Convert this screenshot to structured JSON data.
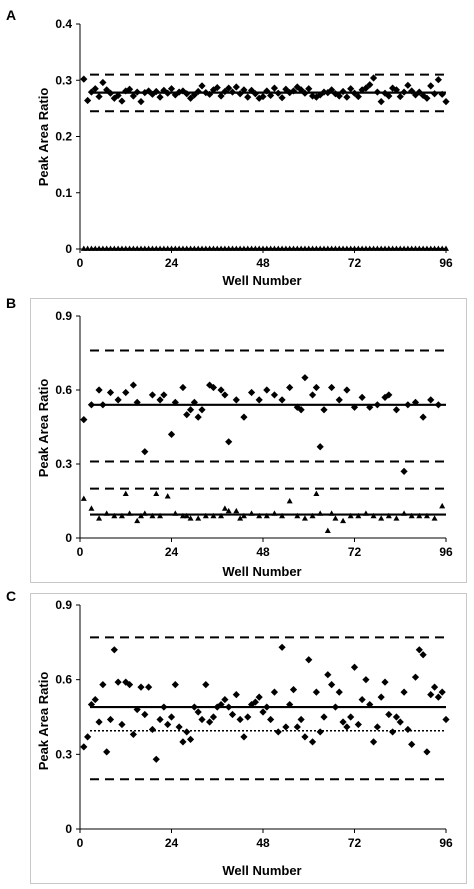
{
  "chart_data": [
    {
      "type": "scatter",
      "panel_label": "A",
      "xlabel": "Well Number",
      "ylabel": "Peak Area Ratio",
      "xlim": [
        0,
        96
      ],
      "ylim": [
        0,
        0.4
      ],
      "xticks": [
        0,
        24,
        48,
        72,
        96
      ],
      "yticks": [
        0,
        0.1,
        0.2,
        0.3,
        0.4
      ],
      "xtick_labels": [
        "0",
        "24",
        "48",
        "72",
        "96"
      ],
      "ytick_labels": [
        "0",
        "0.1",
        "0.2",
        "0.3",
        "0.4"
      ],
      "frame": false,
      "series": [
        {
          "marker": "diamond",
          "x": [
            1,
            2,
            3,
            4,
            5,
            6,
            7,
            8,
            9,
            10,
            11,
            12,
            13,
            14,
            15,
            16,
            17,
            18,
            19,
            20,
            21,
            22,
            23,
            24,
            25,
            26,
            27,
            28,
            29,
            30,
            31,
            32,
            33,
            34,
            35,
            36,
            37,
            38,
            39,
            40,
            41,
            42,
            43,
            44,
            45,
            46,
            47,
            48,
            49,
            50,
            51,
            52,
            53,
            54,
            55,
            56,
            57,
            58,
            59,
            60,
            61,
            62,
            63,
            64,
            65,
            66,
            67,
            68,
            69,
            70,
            71,
            72,
            73,
            74,
            75,
            76,
            77,
            78,
            79,
            80,
            81,
            82,
            83,
            84,
            85,
            86,
            87,
            88,
            89,
            90,
            91,
            92,
            93,
            94,
            95,
            96
          ],
          "y": [
            0.302,
            0.264,
            0.279,
            0.285,
            0.271,
            0.296,
            0.283,
            0.277,
            0.268,
            0.273,
            0.263,
            0.281,
            0.284,
            0.272,
            0.279,
            0.262,
            0.278,
            0.281,
            0.275,
            0.28,
            0.27,
            0.282,
            0.277,
            0.285,
            0.274,
            0.279,
            0.281,
            0.276,
            0.268,
            0.274,
            0.28,
            0.29,
            0.278,
            0.275,
            0.283,
            0.287,
            0.272,
            0.28,
            0.286,
            0.279,
            0.288,
            0.276,
            0.283,
            0.27,
            0.282,
            0.276,
            0.268,
            0.271,
            0.281,
            0.273,
            0.286,
            0.277,
            0.269,
            0.284,
            0.278,
            0.281,
            0.288,
            0.283,
            0.277,
            0.285,
            0.272,
            0.27,
            0.274,
            0.279,
            0.278,
            0.283,
            0.276,
            0.272,
            0.28,
            0.27,
            0.285,
            0.277,
            0.271,
            0.283,
            0.286,
            0.292,
            0.304,
            0.279,
            0.262,
            0.277,
            0.272,
            0.286,
            0.283,
            0.271,
            0.279,
            0.291,
            0.281,
            0.274,
            0.279,
            0.273,
            0.268,
            0.29,
            0.276,
            0.301,
            0.275,
            0.262
          ]
        },
        {
          "marker": "triangle",
          "x": [
            1,
            2,
            3,
            4,
            5,
            6,
            7,
            8,
            9,
            10,
            11,
            12,
            13,
            14,
            15,
            16,
            17,
            18,
            19,
            20,
            21,
            22,
            23,
            24,
            25,
            26,
            27,
            28,
            29,
            30,
            31,
            32,
            33,
            34,
            35,
            36,
            37,
            38,
            39,
            40,
            41,
            42,
            43,
            44,
            45,
            46,
            47,
            48,
            49,
            50,
            51,
            52,
            53,
            54,
            55,
            56,
            57,
            58,
            59,
            60,
            61,
            62,
            63,
            64,
            65,
            66,
            67,
            68,
            69,
            70,
            71,
            72,
            73,
            74,
            75,
            76,
            77,
            78,
            79,
            80,
            81,
            82,
            83,
            84,
            85,
            86,
            87,
            88,
            89,
            90,
            91,
            92,
            93,
            94,
            95,
            96
          ],
          "y": [
            0.001,
            0.001,
            0.001,
            0.001,
            0.001,
            0.001,
            0.001,
            0.001,
            0.001,
            0.001,
            0.001,
            0.001,
            0.001,
            0.001,
            0.001,
            0.001,
            0.001,
            0.001,
            0.001,
            0.001,
            0.001,
            0.001,
            0.001,
            0.001,
            0.001,
            0.001,
            0.001,
            0.001,
            0.001,
            0.001,
            0.001,
            0.001,
            0.001,
            0.001,
            0.001,
            0.001,
            0.001,
            0.001,
            0.001,
            0.001,
            0.001,
            0.001,
            0.001,
            0.001,
            0.001,
            0.001,
            0.001,
            0.001,
            0.001,
            0.001,
            0.001,
            0.001,
            0.001,
            0.001,
            0.001,
            0.001,
            0.001,
            0.001,
            0.001,
            0.001,
            0.001,
            0.001,
            0.001,
            0.001,
            0.001,
            0.001,
            0.001,
            0.001,
            0.001,
            0.001,
            0.001,
            0.001,
            0.001,
            0.001,
            0.001,
            0.001,
            0.001,
            0.001,
            0.001,
            0.001,
            0.001,
            0.001,
            0.001,
            0.001,
            0.001,
            0.001,
            0.001,
            0.001,
            0.001,
            0.001,
            0.001,
            0.001,
            0.001,
            0.001,
            0.001,
            0.001
          ]
        }
      ],
      "reference_lines": [
        {
          "y": 0.278,
          "style": "solid"
        },
        {
          "y": 0.31,
          "style": "dashed"
        },
        {
          "y": 0.245,
          "style": "dashed"
        },
        {
          "y": 0,
          "style": "solid"
        }
      ]
    },
    {
      "type": "scatter",
      "panel_label": "B",
      "xlabel": "Well Number",
      "ylabel": "Peak Area Ratio",
      "xlim": [
        0,
        96
      ],
      "ylim": [
        0,
        0.9
      ],
      "xticks": [
        0,
        24,
        48,
        72,
        96
      ],
      "yticks": [
        0,
        0.3,
        0.6,
        0.9
      ],
      "xtick_labels": [
        "0",
        "24",
        "48",
        "72",
        "96"
      ],
      "ytick_labels": [
        "0",
        "0.3",
        "0.6",
        "0.9"
      ],
      "frame": true,
      "series": [
        {
          "marker": "diamond",
          "x": [
            1,
            3,
            5,
            6,
            8,
            10,
            12,
            14,
            15,
            17,
            19,
            21,
            22,
            24,
            25,
            27,
            28,
            29,
            30,
            31,
            32,
            34,
            35,
            37,
            38,
            39,
            41,
            43,
            45,
            47,
            49,
            51,
            53,
            55,
            57,
            58,
            59,
            61,
            62,
            63,
            64,
            66,
            68,
            70,
            72,
            74,
            76,
            78,
            80,
            81,
            83,
            85,
            86,
            88,
            90,
            92,
            94
          ],
          "y": [
            0.48,
            0.54,
            0.6,
            0.54,
            0.59,
            0.56,
            0.59,
            0.62,
            0.55,
            0.35,
            0.58,
            0.56,
            0.58,
            0.42,
            0.55,
            0.61,
            0.5,
            0.52,
            0.55,
            0.49,
            0.52,
            0.62,
            0.61,
            0.6,
            0.58,
            0.39,
            0.56,
            0.49,
            0.59,
            0.56,
            0.6,
            0.58,
            0.56,
            0.61,
            0.53,
            0.52,
            0.65,
            0.58,
            0.61,
            0.37,
            0.52,
            0.61,
            0.56,
            0.6,
            0.53,
            0.57,
            0.53,
            0.54,
            0.57,
            0.58,
            0.52,
            0.27,
            0.54,
            0.55,
            0.49,
            0.56,
            0.54
          ]
        },
        {
          "marker": "triangle",
          "x": [
            1,
            3,
            5,
            7,
            9,
            11,
            12,
            13,
            15,
            16,
            17,
            19,
            20,
            21,
            23,
            25,
            27,
            28,
            29,
            31,
            33,
            35,
            37,
            38,
            39,
            41,
            42,
            43,
            45,
            47,
            49,
            51,
            53,
            55,
            57,
            59,
            61,
            62,
            63,
            65,
            66,
            67,
            69,
            71,
            73,
            75,
            77,
            79,
            81,
            83,
            85,
            87,
            89,
            91,
            93,
            95
          ],
          "y": [
            0.16,
            0.12,
            0.08,
            0.1,
            0.09,
            0.09,
            0.18,
            0.1,
            0.07,
            0.09,
            0.1,
            0.09,
            0.18,
            0.09,
            0.17,
            0.1,
            0.09,
            0.09,
            0.08,
            0.08,
            0.09,
            0.09,
            0.09,
            0.12,
            0.11,
            0.11,
            0.08,
            0.09,
            0.1,
            0.09,
            0.09,
            0.1,
            0.09,
            0.15,
            0.09,
            0.08,
            0.09,
            0.18,
            0.1,
            0.03,
            0.1,
            0.08,
            0.07,
            0.09,
            0.09,
            0.1,
            0.09,
            0.08,
            0.09,
            0.08,
            0.1,
            0.09,
            0.09,
            0.09,
            0.08,
            0.13
          ]
        }
      ],
      "reference_lines": [
        {
          "y": 0.54,
          "style": "solid"
        },
        {
          "y": 0.76,
          "style": "dashed"
        },
        {
          "y": 0.31,
          "style": "dashed"
        },
        {
          "y": 0.2,
          "style": "dashed"
        },
        {
          "y": 0.095,
          "style": "solid"
        }
      ]
    },
    {
      "type": "scatter",
      "panel_label": "C",
      "xlabel": "Well Number",
      "ylabel": "Peak Area Ratio",
      "xlim": [
        0,
        96
      ],
      "ylim": [
        0,
        0.9
      ],
      "xticks": [
        0,
        24,
        48,
        72,
        96
      ],
      "yticks": [
        0,
        0.3,
        0.6,
        0.9
      ],
      "xtick_labels": [
        "0",
        "24",
        "48",
        "72",
        "96"
      ],
      "ytick_labels": [
        "0",
        "0.3",
        "0.6",
        "0.9"
      ],
      "frame": true,
      "series": [
        {
          "marker": "diamond",
          "x": [
            1,
            2,
            3,
            4,
            5,
            6,
            7,
            8,
            9,
            10,
            11,
            12,
            13,
            14,
            15,
            16,
            17,
            18,
            19,
            20,
            21,
            22,
            23,
            24,
            25,
            26,
            27,
            28,
            29,
            30,
            31,
            32,
            33,
            34,
            35,
            36,
            37,
            38,
            39,
            40,
            41,
            42,
            43,
            44,
            45,
            46,
            47,
            48,
            49,
            50,
            51,
            52,
            53,
            54,
            55,
            56,
            57,
            58,
            59,
            60,
            61,
            62,
            63,
            64,
            65,
            66,
            67,
            68,
            69,
            70,
            71,
            72,
            73,
            74,
            75,
            76,
            77,
            78,
            79,
            80,
            81,
            82,
            83,
            84,
            85,
            86,
            87,
            88,
            89,
            90,
            91,
            92,
            93,
            94,
            95,
            96
          ],
          "y": [
            0.33,
            0.37,
            0.5,
            0.52,
            0.43,
            0.58,
            0.31,
            0.44,
            0.72,
            0.59,
            0.42,
            0.59,
            0.58,
            0.38,
            0.48,
            0.57,
            0.46,
            0.57,
            0.4,
            0.28,
            0.44,
            0.49,
            0.42,
            0.45,
            0.58,
            0.41,
            0.35,
            0.39,
            0.36,
            0.49,
            0.47,
            0.44,
            0.58,
            0.43,
            0.45,
            0.49,
            0.5,
            0.52,
            0.49,
            0.46,
            0.54,
            0.44,
            0.37,
            0.45,
            0.5,
            0.51,
            0.53,
            0.47,
            0.49,
            0.44,
            0.55,
            0.39,
            0.73,
            0.41,
            0.5,
            0.56,
            0.41,
            0.44,
            0.37,
            0.68,
            0.35,
            0.55,
            0.39,
            0.45,
            0.62,
            0.58,
            0.49,
            0.55,
            0.43,
            0.41,
            0.45,
            0.65,
            0.42,
            0.52,
            0.6,
            0.5,
            0.35,
            0.41,
            0.53,
            0.59,
            0.46,
            0.39,
            0.45,
            0.43,
            0.55,
            0.4,
            0.34,
            0.61,
            0.72,
            0.7,
            0.31,
            0.54,
            0.57,
            0.53,
            0.55,
            0.44
          ]
        }
      ],
      "reference_lines": [
        {
          "y": 0.49,
          "style": "solid"
        },
        {
          "y": 0.77,
          "style": "dashed"
        },
        {
          "y": 0.2,
          "style": "dashed"
        },
        {
          "y": 0.395,
          "style": "dotted"
        }
      ]
    }
  ]
}
